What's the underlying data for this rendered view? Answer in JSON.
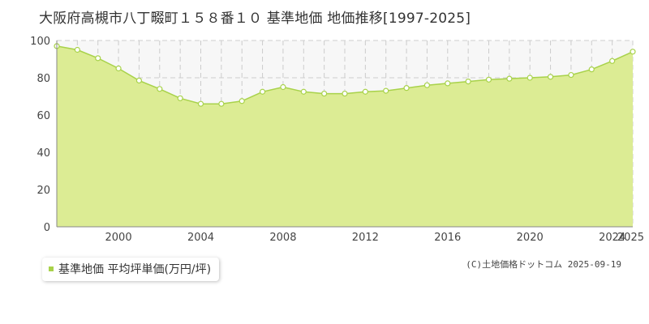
{
  "page": {
    "title": "大阪府高槻市八丁畷町１５８番１０ 基準地価 地価推移[1997-2025]",
    "credit": "(C)土地価格ドットコム 2025-09-19"
  },
  "colors": {
    "area_fill": "#dcec94",
    "line": "#a8d24a",
    "grid": "#cccccc",
    "plot_bg": "#f7f7f7"
  },
  "chart_data": {
    "type": "area",
    "title": "大阪府高槻市八丁畷町１５８番１０ 基準地価 地価推移[1997-2025]",
    "xlabel": "",
    "ylabel": "",
    "ylim": [
      0,
      100
    ],
    "xlim": [
      1997,
      2025
    ],
    "yticks": [
      0,
      20,
      40,
      60,
      80,
      100
    ],
    "xticks": [
      2000,
      2004,
      2008,
      2012,
      2016,
      2020,
      2024,
      2025
    ],
    "grid": true,
    "legend_position": "bottom-left",
    "series": [
      {
        "name": "基準地価 平均坪単価(万円/坪)",
        "x": [
          1997,
          1998,
          1999,
          2000,
          2001,
          2002,
          2003,
          2004,
          2005,
          2006,
          2007,
          2008,
          2009,
          2010,
          2011,
          2012,
          2013,
          2014,
          2015,
          2016,
          2017,
          2018,
          2019,
          2020,
          2021,
          2022,
          2023,
          2024,
          2025
        ],
        "values": [
          97,
          95,
          90.5,
          85,
          78.5,
          74,
          69,
          66,
          66,
          67.5,
          72.5,
          75,
          72.5,
          71.5,
          71.5,
          72.5,
          73,
          74.5,
          76,
          77,
          78,
          79,
          79.5,
          80,
          80.5,
          81.5,
          84.5,
          89,
          94
        ]
      }
    ]
  }
}
